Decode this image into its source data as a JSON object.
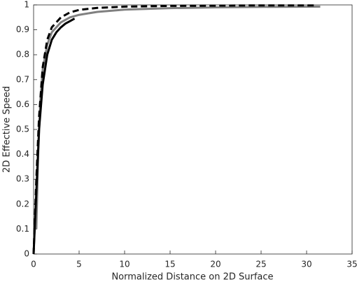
{
  "chart_data": {
    "type": "line",
    "xlabel": "Normalized Distance on 2D Surface",
    "ylabel": "2D Effective Speed",
    "xlim": [
      0,
      35
    ],
    "xticks": [
      0,
      5,
      10,
      15,
      20,
      25,
      30,
      35
    ],
    "ylim": [
      0,
      1
    ],
    "yticks": [
      0,
      0.1,
      0.2,
      0.3,
      0.4,
      0.5,
      0.6,
      0.7,
      0.8,
      0.9,
      1
    ],
    "series": [
      {
        "color": "#808080",
        "dash": false,
        "x": [
          0.3,
          0.5,
          0.75,
          1,
          1.5,
          2,
          3,
          4,
          5,
          7,
          10,
          15,
          20,
          25,
          31.5
        ],
        "values": [
          0.1,
          0.4,
          0.62,
          0.74,
          0.84,
          0.89,
          0.93,
          0.95,
          0.96,
          0.972,
          0.981,
          0.987,
          0.99,
          0.992,
          0.993
        ]
      },
      {
        "color": "#000000",
        "dash": true,
        "x": [
          0,
          0.3,
          0.6,
          1,
          1.5,
          2,
          3,
          4,
          5,
          7,
          10,
          15,
          20,
          25,
          31
        ],
        "values": [
          0,
          0.3,
          0.55,
          0.75,
          0.86,
          0.91,
          0.95,
          0.97,
          0.98,
          0.988,
          0.993,
          0.996,
          0.997,
          0.998,
          0.998
        ]
      },
      {
        "color": "#000000",
        "dash": false,
        "x": [
          0,
          0.3,
          0.6,
          1,
          1.5,
          2,
          2.5,
          3,
          3.5,
          4,
          4.5
        ],
        "values": [
          0,
          0.25,
          0.5,
          0.68,
          0.8,
          0.86,
          0.89,
          0.91,
          0.925,
          0.935,
          0.945
        ]
      }
    ]
  }
}
